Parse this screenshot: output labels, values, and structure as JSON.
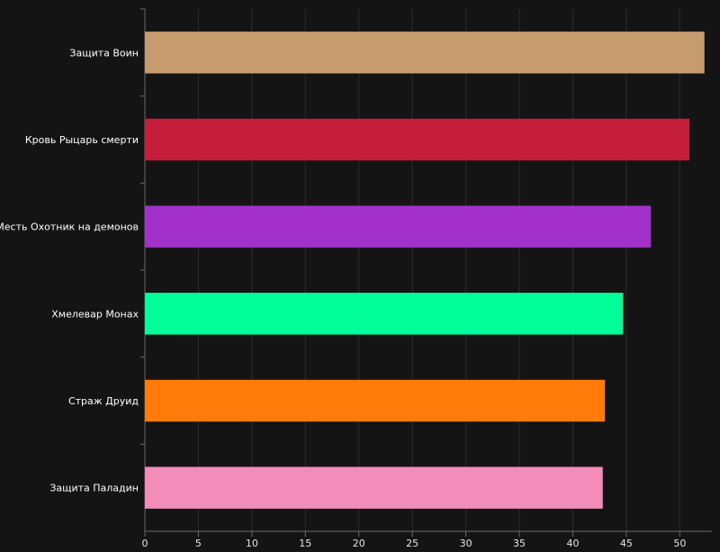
{
  "chart_data": {
    "type": "bar",
    "orientation": "horizontal",
    "categories": [
      "Защита Воин",
      "Кровь Рыцарь смерти",
      "Месть Охотник на демонов",
      "Хмелевар Монах",
      "Страж Друид",
      "Защита Паладин"
    ],
    "values": [
      52.3,
      50.9,
      47.3,
      44.7,
      43.0,
      42.8
    ],
    "colors": [
      "#C69B6D",
      "#C41E3A",
      "#A330C9",
      "#00FF98",
      "#FF7C0A",
      "#F48CBA"
    ],
    "xlim": [
      0,
      53
    ],
    "x_ticks": [
      "0",
      "5",
      "10",
      "15",
      "20",
      "25",
      "30",
      "35",
      "40",
      "45",
      "50"
    ],
    "grid": "vertical",
    "title": "",
    "xlabel": "",
    "ylabel": ""
  }
}
